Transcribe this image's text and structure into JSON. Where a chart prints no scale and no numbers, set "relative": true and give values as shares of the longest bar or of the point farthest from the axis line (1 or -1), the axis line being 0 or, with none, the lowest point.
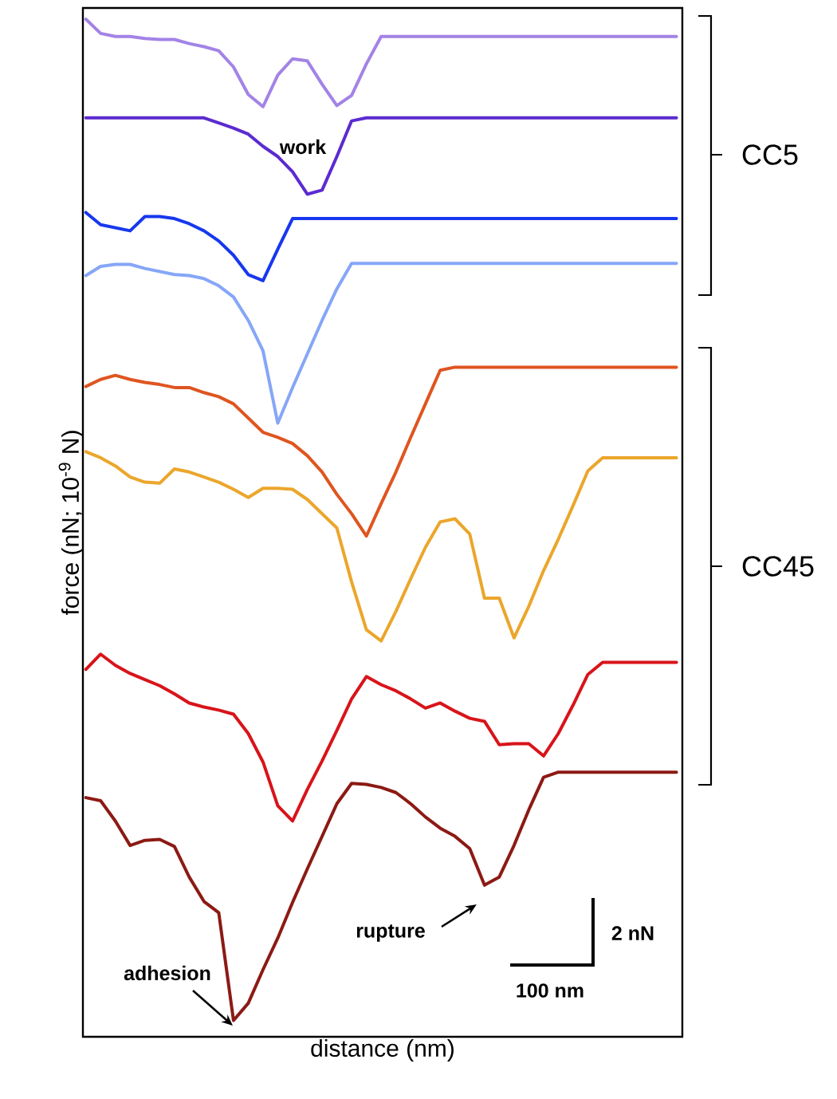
{
  "chart_data": {
    "type": "line",
    "relative": true,
    "xlabel": "distance (nm)",
    "ylabel": "force (nN; 10$^{-9}$ N)",
    "categories": [
      null,
      null,
      null,
      null,
      null,
      null,
      null,
      null,
      null,
      null,
      null,
      null,
      null,
      null,
      null,
      null,
      null,
      null,
      null,
      null,
      null,
      null,
      null,
      null,
      null,
      null,
      null,
      null,
      null,
      null,
      null,
      null,
      null,
      null,
      null,
      null,
      null,
      null,
      null,
      null,
      null
    ],
    "series": [
      {
        "color": "#a383e6",
        "values": [
          1.0,
          0.986,
          0.983,
          0.983,
          0.981,
          0.98,
          0.98,
          0.976,
          0.973,
          0.969,
          0.953,
          0.926,
          0.914,
          0.945,
          0.961,
          0.959,
          0.936,
          0.915,
          0.925,
          0.956,
          0.983,
          0.983,
          0.983,
          0.983,
          0.983,
          0.983,
          0.983,
          0.983,
          0.983,
          0.983,
          0.983,
          0.983,
          0.983,
          0.983,
          0.983,
          0.983,
          0.983,
          0.983,
          0.983,
          0.983,
          0.983
        ]
      },
      {
        "color": "#5b2bd0",
        "values": [
          0.903,
          0.903,
          0.903,
          0.903,
          0.903,
          0.903,
          0.903,
          0.903,
          0.903,
          0.898,
          0.893,
          0.887,
          0.875,
          0.865,
          0.85,
          0.828,
          0.832,
          0.865,
          0.9,
          0.903,
          0.903,
          0.903,
          0.903,
          0.903,
          0.903,
          0.903,
          0.903,
          0.903,
          0.903,
          0.903,
          0.903,
          0.903,
          0.903,
          0.903,
          0.903,
          0.903,
          0.903,
          0.903,
          0.903,
          0.903,
          0.903
        ]
      },
      {
        "color": "#1738ee",
        "values": [
          0.81,
          0.798,
          0.795,
          0.792,
          0.806,
          0.806,
          0.804,
          0.799,
          0.792,
          0.782,
          0.768,
          0.749,
          0.743,
          0.774,
          0.804,
          0.804,
          0.804,
          0.804,
          0.804,
          0.804,
          0.804,
          0.804,
          0.804,
          0.804,
          0.804,
          0.804,
          0.804,
          0.804,
          0.804,
          0.804,
          0.804,
          0.804,
          0.804,
          0.804,
          0.804,
          0.804,
          0.804,
          0.804,
          0.804,
          0.804,
          0.804
        ]
      },
      {
        "color": "#86a6f7",
        "values": [
          0.748,
          0.757,
          0.759,
          0.759,
          0.755,
          0.752,
          0.749,
          0.748,
          0.745,
          0.738,
          0.727,
          0.704,
          0.674,
          0.603,
          0.638,
          0.671,
          0.704,
          0.735,
          0.76,
          0.76,
          0.76,
          0.76,
          0.76,
          0.76,
          0.76,
          0.76,
          0.76,
          0.76,
          0.76,
          0.76,
          0.76,
          0.76,
          0.76,
          0.76,
          0.76,
          0.76,
          0.76,
          0.76,
          0.76,
          0.76,
          0.76
        ]
      },
      {
        "color": "#df5520",
        "values": [
          0.639,
          0.646,
          0.65,
          0.646,
          0.643,
          0.641,
          0.638,
          0.638,
          0.633,
          0.629,
          0.622,
          0.608,
          0.594,
          0.589,
          0.583,
          0.571,
          0.555,
          0.533,
          0.514,
          0.492,
          0.524,
          0.555,
          0.589,
          0.622,
          0.655,
          0.658,
          0.658,
          0.658,
          0.658,
          0.658,
          0.658,
          0.658,
          0.658,
          0.658,
          0.658,
          0.658,
          0.658,
          0.658,
          0.658,
          0.658,
          0.658
        ]
      },
      {
        "color": "#eba62c",
        "values": [
          0.575,
          0.569,
          0.561,
          0.55,
          0.545,
          0.544,
          0.558,
          0.555,
          0.55,
          0.545,
          0.538,
          0.53,
          0.539,
          0.539,
          0.538,
          0.528,
          0.514,
          0.5,
          0.447,
          0.4,
          0.389,
          0.418,
          0.45,
          0.481,
          0.506,
          0.509,
          0.494,
          0.431,
          0.431,
          0.392,
          0.423,
          0.458,
          0.489,
          0.522,
          0.556,
          0.569,
          0.569,
          0.569,
          0.569,
          0.569,
          0.569
        ]
      },
      {
        "color": "#d8141a",
        "values": [
          0.361,
          0.376,
          0.365,
          0.357,
          0.351,
          0.345,
          0.337,
          0.328,
          0.324,
          0.321,
          0.317,
          0.298,
          0.27,
          0.227,
          0.212,
          0.243,
          0.271,
          0.301,
          0.332,
          0.354,
          0.346,
          0.34,
          0.332,
          0.323,
          0.328,
          0.32,
          0.313,
          0.31,
          0.287,
          0.288,
          0.288,
          0.276,
          0.298,
          0.326,
          0.356,
          0.368,
          0.368,
          0.368,
          0.368,
          0.368,
          0.368
        ]
      },
      {
        "color": "#8c1a14",
        "values": [
          0.235,
          0.232,
          0.212,
          0.188,
          0.193,
          0.194,
          0.187,
          0.157,
          0.133,
          0.122,
          0.016,
          0.033,
          0.066,
          0.097,
          0.132,
          0.165,
          0.197,
          0.229,
          0.249,
          0.248,
          0.245,
          0.24,
          0.229,
          0.216,
          0.205,
          0.197,
          0.185,
          0.149,
          0.157,
          0.188,
          0.223,
          0.255,
          0.26,
          0.26,
          0.26,
          0.26,
          0.26,
          0.26,
          0.26,
          0.26,
          0.26
        ]
      }
    ],
    "annotations": [
      "work",
      "adhesion",
      "rupture",
      "2 nN",
      "100 nm",
      "CC5",
      "CC45"
    ]
  }
}
